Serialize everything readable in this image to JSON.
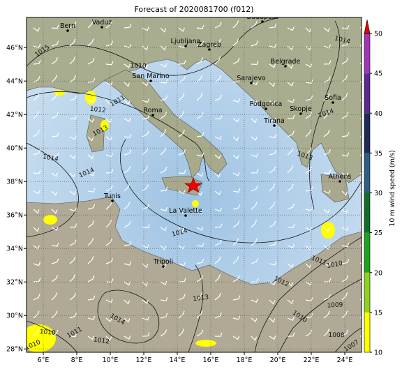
{
  "title": "Forecast of 2020081700 (f012)",
  "map": {
    "xlim": [
      5,
      25
    ],
    "ylim": [
      27.8,
      47.8
    ],
    "xticks": [
      {
        "value": 6,
        "label": "6°E"
      },
      {
        "value": 8,
        "label": "8°E"
      },
      {
        "value": 10,
        "label": "10°E"
      },
      {
        "value": 12,
        "label": "12°E"
      },
      {
        "value": 14,
        "label": "14°E"
      },
      {
        "value": 16,
        "label": "16°E"
      },
      {
        "value": 18,
        "label": "18°E"
      },
      {
        "value": 20,
        "label": "20°E"
      },
      {
        "value": 22,
        "label": "22°E"
      },
      {
        "value": 24,
        "label": "24°E"
      }
    ],
    "yticks": [
      {
        "value": 28,
        "label": "28°N"
      },
      {
        "value": 30,
        "label": "30°N"
      },
      {
        "value": 32,
        "label": "32°N"
      },
      {
        "value": 34,
        "label": "34°N"
      },
      {
        "value": 36,
        "label": "36°N"
      },
      {
        "value": 38,
        "label": "38°N"
      },
      {
        "value": 40,
        "label": "40°N"
      },
      {
        "value": 42,
        "label": "42°N"
      },
      {
        "value": 44,
        "label": "44°N"
      },
      {
        "value": 46,
        "label": "46°N"
      }
    ],
    "cities": [
      "Bern",
      "Vaduz",
      "Budapest",
      "Ljubljana",
      "Zagreb",
      "San Marino",
      "Belgrade",
      "Sarajevo",
      "Podgorica",
      "Sofia",
      "Skopje",
      "Roma",
      "Tirana",
      "Athens",
      "Tunis",
      "La Valette",
      "Tripoli"
    ],
    "isobar_labels": [
      1015,
      1010,
      1011,
      1012,
      1013,
      1014,
      1014,
      1014,
      1014,
      1013,
      1014,
      1011,
      1010,
      1012,
      1013,
      1014,
      1009,
      1010,
      1008,
      1007,
      1010,
      1011,
      1012,
      1010
    ]
  },
  "colorbar": {
    "label": "10 m wind speed (m/s)",
    "lim": [
      10,
      50
    ],
    "ticks": [
      10,
      15,
      20,
      25,
      30,
      35,
      40,
      45,
      50
    ],
    "colors": [
      "#ffff00",
      "#8fd11e",
      "#1fa31f",
      "#0f6e28",
      "#2a5e86",
      "#1d2a55",
      "#5b2a8f",
      "#a235b5"
    ]
  }
}
